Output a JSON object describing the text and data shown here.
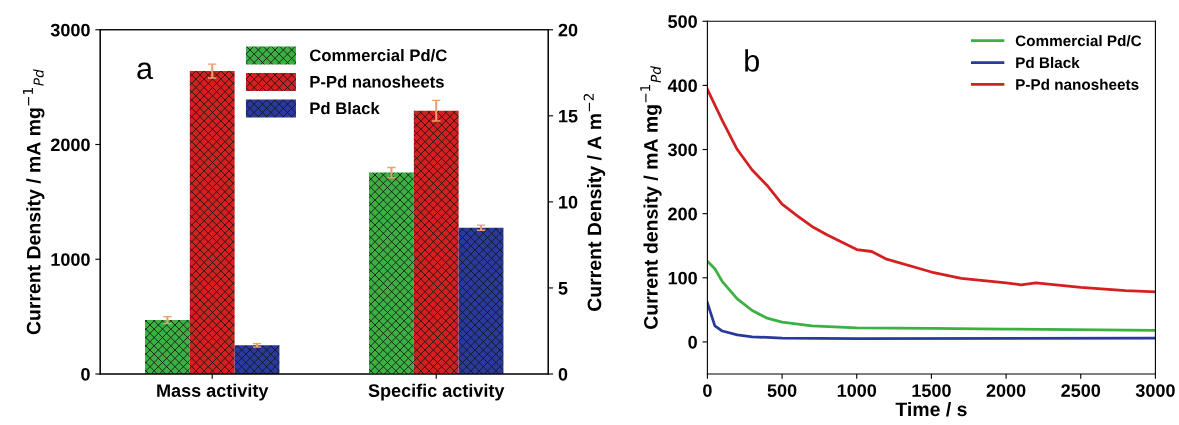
{
  "chart_data": [
    {
      "type": "bar",
      "categories": [
        "Mass activity",
        "Specific activity"
      ],
      "ylabel": "Current Density / mA mg$^{−1}$$_{Pd}$",
      "y2label": "Current Density / A m$^{−2}$",
      "ylim": [
        0,
        3000
      ],
      "yticks": [
        0,
        1000,
        2000,
        3000
      ],
      "y2lim": [
        0,
        20
      ],
      "y2ticks": [
        0,
        5,
        10,
        15,
        20
      ],
      "annotations": [
        "a"
      ],
      "legend": "top",
      "series": [
        {
          "name": "Commercial Pd/C",
          "color": "#3cb043",
          "values": [
            470,
            null
          ],
          "errors": [
            30,
            null
          ]
        },
        {
          "name": "P-Pd nanosheets",
          "color": "#d42020",
          "values": [
            2640,
            null
          ],
          "errors": [
            60,
            null
          ]
        },
        {
          "name": "Pd Black",
          "color": "#2a3a9c",
          "values": [
            250,
            null
          ],
          "errors": [
            15,
            null
          ]
        },
        {
          "color": "#3cb043",
          "values": [
            null,
            11.7
          ],
          "errors": [
            null,
            0.3
          ],
          "axis": "y2"
        },
        {
          "color": "#d42020",
          "values": [
            null,
            15.3
          ],
          "errors": [
            null,
            0.6
          ],
          "axis": "y2"
        },
        {
          "color": "#2a3a9c",
          "values": [
            null,
            8.5
          ],
          "errors": [
            null,
            0.15
          ],
          "axis": "y2"
        }
      ]
    },
    {
      "type": "line",
      "xlabel": "Time / s",
      "ylabel": "Current density / mA mg$^{−1}$$_{Pd}$",
      "xlim": [
        0,
        3000
      ],
      "xticks": [
        0,
        500,
        1000,
        1500,
        2000,
        2500,
        3000
      ],
      "ylim": [
        -50,
        500
      ],
      "yticks": [
        0,
        100,
        200,
        300,
        400,
        500
      ],
      "annotations": [
        "b"
      ],
      "legend": "top right",
      "series": [
        {
          "name": "Commercial Pd/C",
          "color": "#3cb043",
          "x": [
            0,
            50,
            100,
            200,
            300,
            400,
            500,
            700,
            1000,
            1500,
            2000,
            3000
          ],
          "values": [
            126,
            114,
            94,
            67,
            49,
            37,
            31,
            25,
            22,
            21,
            20,
            18
          ]
        },
        {
          "name": "Pd Black",
          "color": "#2a3a9c",
          "x": [
            0,
            25,
            50,
            100,
            200,
            300,
            500,
            1000,
            3000
          ],
          "values": [
            61,
            43,
            25,
            17,
            11,
            8,
            6,
            5,
            6
          ]
        },
        {
          "name": "P-Pd nanosheets",
          "color": "#d42020",
          "x": [
            0,
            100,
            200,
            300,
            400,
            500,
            600,
            700,
            800,
            1000,
            1100,
            1200,
            1500,
            1700,
            2000,
            2100,
            2200,
            2500,
            2800,
            3000
          ],
          "values": [
            394,
            345,
            300,
            268,
            244,
            215,
            197,
            180,
            167,
            144,
            141,
            129,
            109,
            99,
            92,
            89,
            92,
            85,
            80,
            78
          ]
        }
      ]
    }
  ]
}
